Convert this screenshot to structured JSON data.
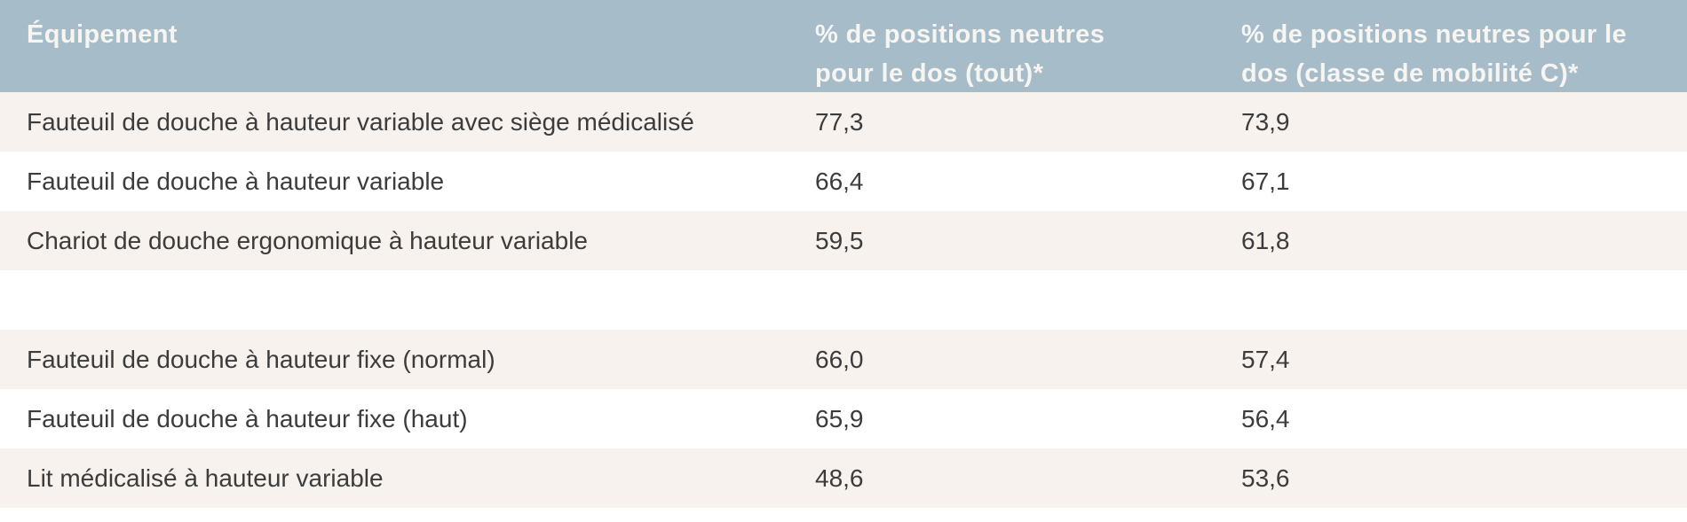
{
  "table": {
    "columns": [
      {
        "label": "Équipement"
      },
      {
        "label": "% de positions neutres pour le dos (tout)*"
      },
      {
        "label": "% de positions neutres pour le dos (classe de mobilité C)*"
      }
    ],
    "rows": [
      {
        "label": "Fauteuil de douche à hauteur variable avec siège médicalisé",
        "pct_tout": "77,3",
        "pct_classe_c": "73,9"
      },
      {
        "label": "Fauteuil de douche à hauteur variable",
        "pct_tout": "66,4",
        "pct_classe_c": "67,1"
      },
      {
        "label": "Chariot de douche ergonomique à hauteur variable",
        "pct_tout": "59,5",
        "pct_classe_c": "61,8"
      },
      {
        "label": "",
        "pct_tout": "",
        "pct_classe_c": ""
      },
      {
        "label": "Fauteuil de douche à hauteur fixe (normal)",
        "pct_tout": "66,0",
        "pct_classe_c": "57,4"
      },
      {
        "label": "Fauteuil de douche à hauteur fixe (haut)",
        "pct_tout": "65,9",
        "pct_classe_c": "56,4"
      },
      {
        "label": "Lit médicalisé à hauteur variable",
        "pct_tout": "48,6",
        "pct_classe_c": "53,6"
      }
    ]
  },
  "colors": {
    "header_bg": "#a6bcc9",
    "header_text": "#f7f5f2",
    "row_alt_bg": "#f7f2ee",
    "row_bg": "#ffffff",
    "body_text": "#3c3c3c"
  }
}
